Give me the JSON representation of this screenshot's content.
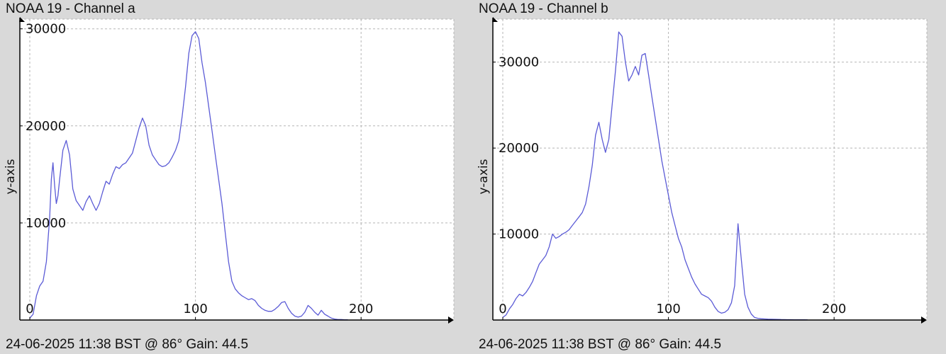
{
  "chart_data": [
    {
      "type": "line",
      "title": "NOAA 19 - Channel a",
      "footer": "24-06-2025 11:38 BST @ 86° Gain: 44.5",
      "ylabel": "y-axis",
      "xlim": [
        -6,
        256
      ],
      "ylim": [
        0,
        31000
      ],
      "xticks": [
        0,
        100,
        200
      ],
      "yticks": [
        10000,
        20000,
        30000
      ],
      "grid": true,
      "line_color": "#5b5bd6",
      "series": [
        {
          "x": [
            0,
            2,
            4,
            6,
            8,
            10,
            12,
            13,
            14,
            15,
            16,
            17,
            18,
            20,
            22,
            24,
            26,
            28,
            30,
            32,
            34,
            36,
            38,
            40,
            42,
            44,
            46,
            48,
            50,
            52,
            54,
            56,
            58,
            60,
            62,
            64,
            66,
            68,
            70,
            72,
            74,
            76,
            78,
            80,
            82,
            84,
            86,
            88,
            90,
            92,
            94,
            96,
            98,
            100,
            102,
            104,
            106,
            108,
            110,
            112,
            114,
            116,
            118,
            120,
            122,
            124,
            126,
            128,
            130,
            132,
            134,
            136,
            138,
            140,
            142,
            144,
            146,
            148,
            150,
            152,
            154,
            156,
            158,
            160,
            162,
            164,
            166,
            168,
            170,
            172,
            174,
            176,
            178,
            180,
            182,
            184,
            186,
            188,
            190,
            192
          ],
          "y": [
            200,
            600,
            2500,
            3500,
            4000,
            6000,
            10500,
            14500,
            16200,
            13800,
            12000,
            12800,
            14500,
            17500,
            18500,
            17000,
            13500,
            12300,
            11800,
            11300,
            12200,
            12800,
            12000,
            11300,
            12000,
            13200,
            14300,
            14000,
            15000,
            15800,
            15600,
            16000,
            16200,
            16700,
            17200,
            18500,
            19800,
            20800,
            20000,
            18000,
            17000,
            16500,
            16000,
            15800,
            15900,
            16200,
            16800,
            17500,
            18500,
            21000,
            24000,
            27500,
            29300,
            29700,
            29000,
            26500,
            24500,
            22000,
            19500,
            17000,
            14500,
            12000,
            9000,
            6000,
            4000,
            3200,
            2800,
            2500,
            2300,
            2100,
            2200,
            2000,
            1500,
            1200,
            1000,
            900,
            900,
            1100,
            1400,
            1800,
            1900,
            1200,
            700,
            400,
            300,
            400,
            800,
            1500,
            1200,
            800,
            500,
            1000,
            600,
            400,
            200,
            100,
            50,
            50,
            30,
            20
          ]
        }
      ]
    },
    {
      "type": "line",
      "title": "NOAA 19 - Channel b",
      "footer": "24-06-2025 11:38 BST @ 86° Gain: 44.5",
      "ylabel": "y-axis",
      "xlim": [
        -6,
        256
      ],
      "ylim": [
        0,
        35000
      ],
      "xticks": [
        0,
        100,
        200
      ],
      "yticks": [
        10000,
        20000,
        30000
      ],
      "grid": true,
      "line_color": "#5b5bd6",
      "series": [
        {
          "x": [
            0,
            2,
            4,
            6,
            8,
            10,
            12,
            14,
            16,
            18,
            20,
            22,
            24,
            26,
            28,
            30,
            32,
            34,
            36,
            38,
            40,
            42,
            44,
            46,
            48,
            50,
            52,
            54,
            56,
            58,
            60,
            62,
            64,
            66,
            68,
            70,
            72,
            74,
            76,
            78,
            80,
            82,
            84,
            86,
            88,
            90,
            92,
            94,
            96,
            98,
            100,
            102,
            104,
            106,
            108,
            110,
            112,
            114,
            116,
            118,
            120,
            122,
            124,
            126,
            128,
            130,
            132,
            134,
            136,
            138,
            140,
            142,
            144,
            146,
            148,
            150,
            152,
            154,
            156,
            158,
            160,
            162,
            164,
            166,
            168,
            170,
            172,
            174,
            176,
            178,
            180,
            182,
            184
          ],
          "y": [
            300,
            600,
            1300,
            1800,
            2500,
            3000,
            2800,
            3200,
            3800,
            4500,
            5500,
            6500,
            7000,
            7500,
            8500,
            10000,
            9500,
            9700,
            10000,
            10200,
            10500,
            11000,
            11500,
            12000,
            12500,
            13500,
            15500,
            18000,
            21500,
            23000,
            21000,
            19500,
            21000,
            25000,
            29000,
            33500,
            33000,
            30000,
            27800,
            28500,
            29500,
            28500,
            30800,
            31000,
            28500,
            26000,
            23500,
            21000,
            18500,
            16500,
            14500,
            12500,
            11000,
            9500,
            8500,
            7000,
            6000,
            5000,
            4200,
            3600,
            3000,
            2800,
            2600,
            2200,
            1500,
            1000,
            800,
            900,
            1200,
            2000,
            4000,
            11200,
            7000,
            3000,
            1500,
            700,
            300,
            200,
            150,
            120,
            100,
            90,
            80,
            70,
            60,
            50,
            45,
            40,
            35,
            30,
            25,
            22,
            20
          ]
        }
      ]
    }
  ]
}
